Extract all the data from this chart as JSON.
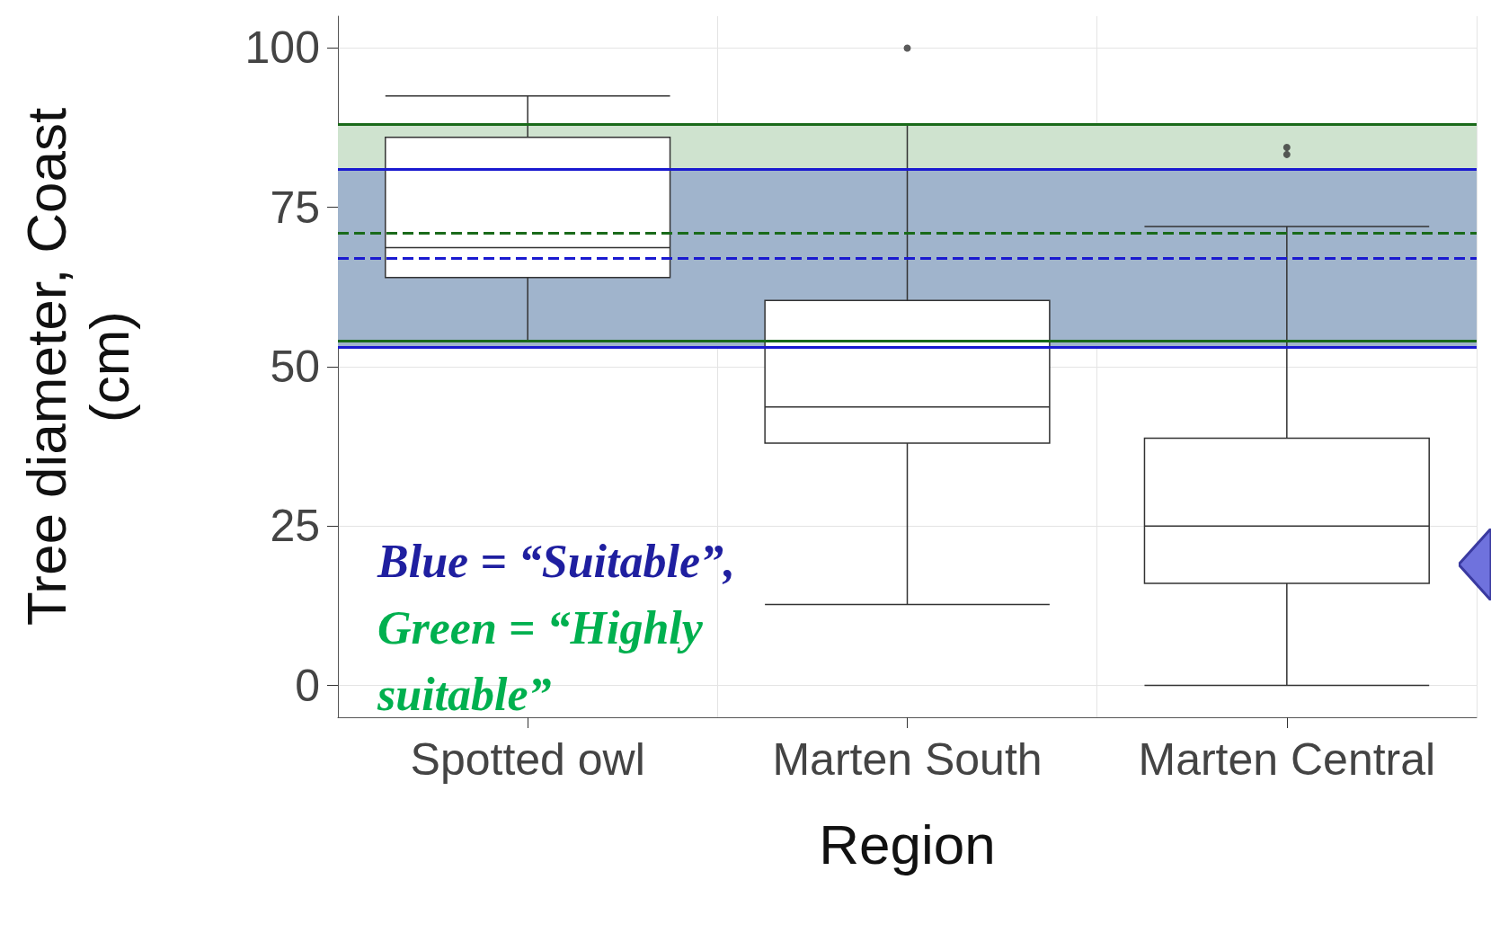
{
  "chart_data": {
    "type": "box",
    "xlabel": "Region",
    "ylabel": "Tree diameter, Coast\n(cm)",
    "categories": [
      "Spotted owl",
      "Marten South",
      "Marten Central"
    ],
    "boxes": [
      {
        "low": 54,
        "q1": 64,
        "median": 68.7,
        "q3": 86,
        "high": 92.5
      },
      {
        "low": 12.7,
        "q1": 38,
        "median": 43.7,
        "q3": 60.4,
        "high": 88,
        "outliers": [
          100
        ]
      },
      {
        "low": 0,
        "q1": 16,
        "median": 25,
        "q3": 38.8,
        "high": 72,
        "outliers": [
          84.4,
          83.3
        ]
      }
    ],
    "ylim": [
      -5,
      105
    ],
    "yticks": [
      0,
      25,
      50,
      75,
      100
    ],
    "grid": true,
    "bands": [
      {
        "axis": "y",
        "from": 54,
        "to": 88,
        "color": "#cfe3cf"
      },
      {
        "axis": "y",
        "from": 53,
        "to": 81,
        "color": "#a0b4cc"
      }
    ],
    "ref_lines": [
      {
        "axis": "y",
        "value": 88,
        "color": "#1a6a1a",
        "line_style": "solid"
      },
      {
        "axis": "y",
        "value": 54,
        "color": "#1a6a1a",
        "line_style": "solid"
      },
      {
        "axis": "y",
        "value": 81,
        "color": "#1a1ad0",
        "line_style": "solid"
      },
      {
        "axis": "y",
        "value": 53,
        "color": "#1a1ad0",
        "line_style": "solid"
      },
      {
        "axis": "y",
        "value": 71,
        "color": "#1a6a1a",
        "line_style": "dashed"
      },
      {
        "axis": "y",
        "value": 67,
        "color": "#1a1ad0",
        "line_style": "dashed"
      }
    ],
    "annotations": [
      "Blue = “Suitable”,",
      "Green = “Highly suitable”"
    ]
  }
}
